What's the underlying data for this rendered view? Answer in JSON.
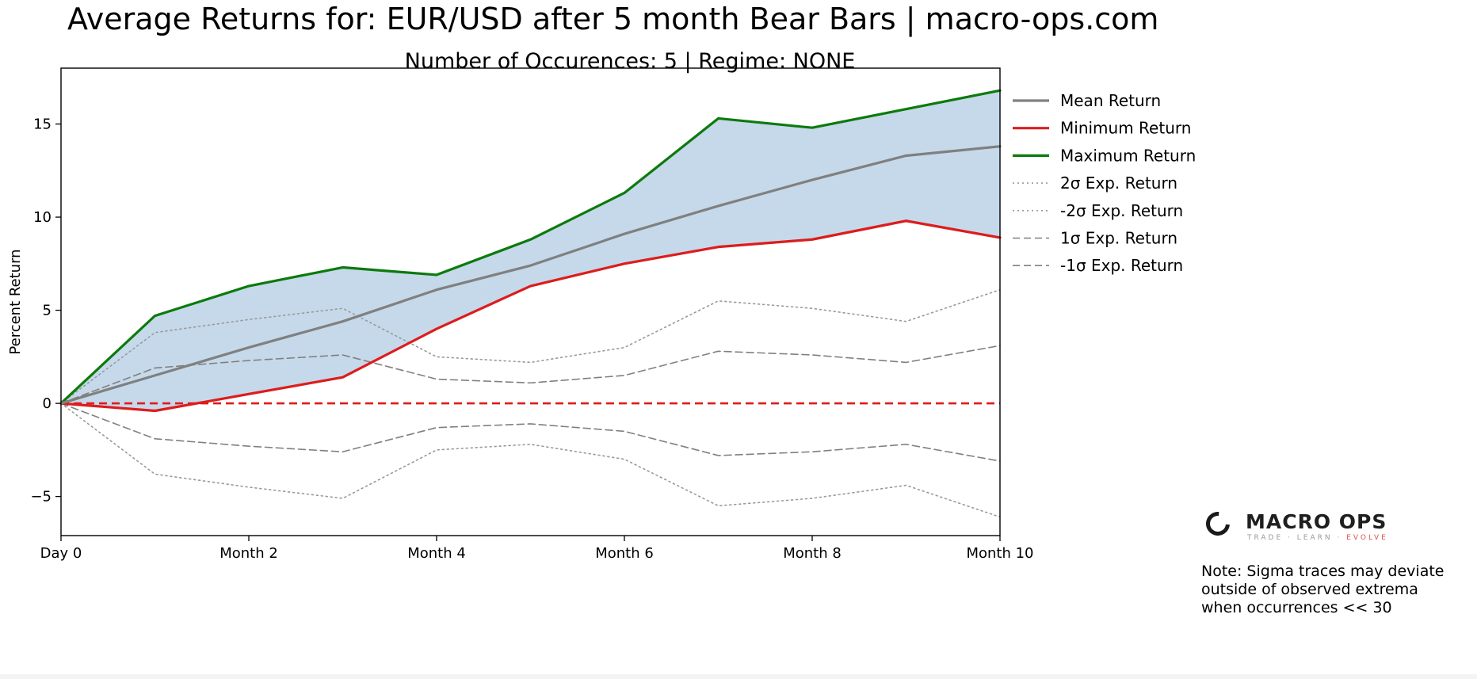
{
  "chart_data": {
    "type": "line",
    "title": "Average Returns for: EUR/USD after 5 month Bear Bars | macro-ops.com",
    "subtitle": "Number of Occurences: 5 | Regime: NONE",
    "xlabel": "",
    "ylabel": "Percent Return",
    "x": [
      0,
      1,
      2,
      3,
      4,
      5,
      6,
      7,
      8,
      9,
      10
    ],
    "xlim": [
      0,
      10
    ],
    "ylim": [
      -7.1,
      18
    ],
    "xticks": [
      {
        "value": 0,
        "label": "Day 0"
      },
      {
        "value": 2,
        "label": "Month 2"
      },
      {
        "value": 4,
        "label": "Month 4"
      },
      {
        "value": 6,
        "label": "Month 6"
      },
      {
        "value": 8,
        "label": "Month 8"
      },
      {
        "value": 10,
        "label": "Month 10"
      }
    ],
    "yticks": [
      {
        "value": 15,
        "label": "15"
      },
      {
        "value": 10,
        "label": "10"
      },
      {
        "value": 5,
        "label": "5"
      },
      {
        "value": 0,
        "label": "0"
      },
      {
        "value": -5,
        "label": "−5"
      }
    ],
    "grid": false,
    "legend_position": "right",
    "fill_between": {
      "lower": "Minimum Return",
      "upper": "Maximum Return",
      "color": "#c5d9ea"
    },
    "zero_line": {
      "value": 0,
      "color": "#dd1c1c",
      "style": "dashed"
    },
    "series": [
      {
        "name": "Mean Return",
        "color": "#808080",
        "style": "solid",
        "width": 3.2,
        "values": [
          0,
          1.5,
          3.0,
          4.4,
          6.1,
          7.4,
          9.1,
          10.6,
          12.0,
          13.3,
          13.8
        ]
      },
      {
        "name": "Minimum Return",
        "color": "#dd1c1c",
        "style": "solid",
        "width": 3.2,
        "values": [
          0,
          -0.4,
          0.5,
          1.4,
          4.0,
          6.3,
          7.5,
          8.4,
          8.8,
          9.8,
          8.9
        ]
      },
      {
        "name": "Maximum Return",
        "color": "#0c7a0c",
        "style": "solid",
        "width": 3.2,
        "values": [
          0,
          4.7,
          6.3,
          7.3,
          6.9,
          8.8,
          11.3,
          15.3,
          14.8,
          15.8,
          16.8
        ]
      },
      {
        "name": "2σ Exp. Return",
        "color": "#9a9a9a",
        "style": "dotted",
        "width": 1.6,
        "values": [
          0,
          3.8,
          4.5,
          5.1,
          2.5,
          2.2,
          3.0,
          5.5,
          5.1,
          4.4,
          6.1
        ]
      },
      {
        "name": "-2σ Exp. Return",
        "color": "#9a9a9a",
        "style": "dotted",
        "width": 1.6,
        "values": [
          0,
          -3.8,
          -4.5,
          -5.1,
          -2.5,
          -2.2,
          -3.0,
          -5.5,
          -5.1,
          -4.4,
          -6.1
        ]
      },
      {
        "name": "1σ Exp. Return",
        "color": "#808080",
        "style": "dashed",
        "width": 1.6,
        "values": [
          0,
          1.9,
          2.3,
          2.6,
          1.3,
          1.1,
          1.5,
          2.8,
          2.6,
          2.2,
          3.1
        ]
      },
      {
        "name": "-1σ Exp. Return",
        "color": "#808080",
        "style": "dashed",
        "width": 1.6,
        "values": [
          0,
          -1.9,
          -2.3,
          -2.6,
          -1.3,
          -1.1,
          -1.5,
          -2.8,
          -2.6,
          -2.2,
          -3.1
        ]
      }
    ]
  },
  "logo": {
    "word": "MACRO OPS",
    "tagline": "TRADE · LEARN ·",
    "tagline_accent": "EVOLVE"
  },
  "note": {
    "line1": "Note: Sigma traces may deviate",
    "line2": "outside of observed extrema",
    "line3": "when occurrences << 30"
  }
}
